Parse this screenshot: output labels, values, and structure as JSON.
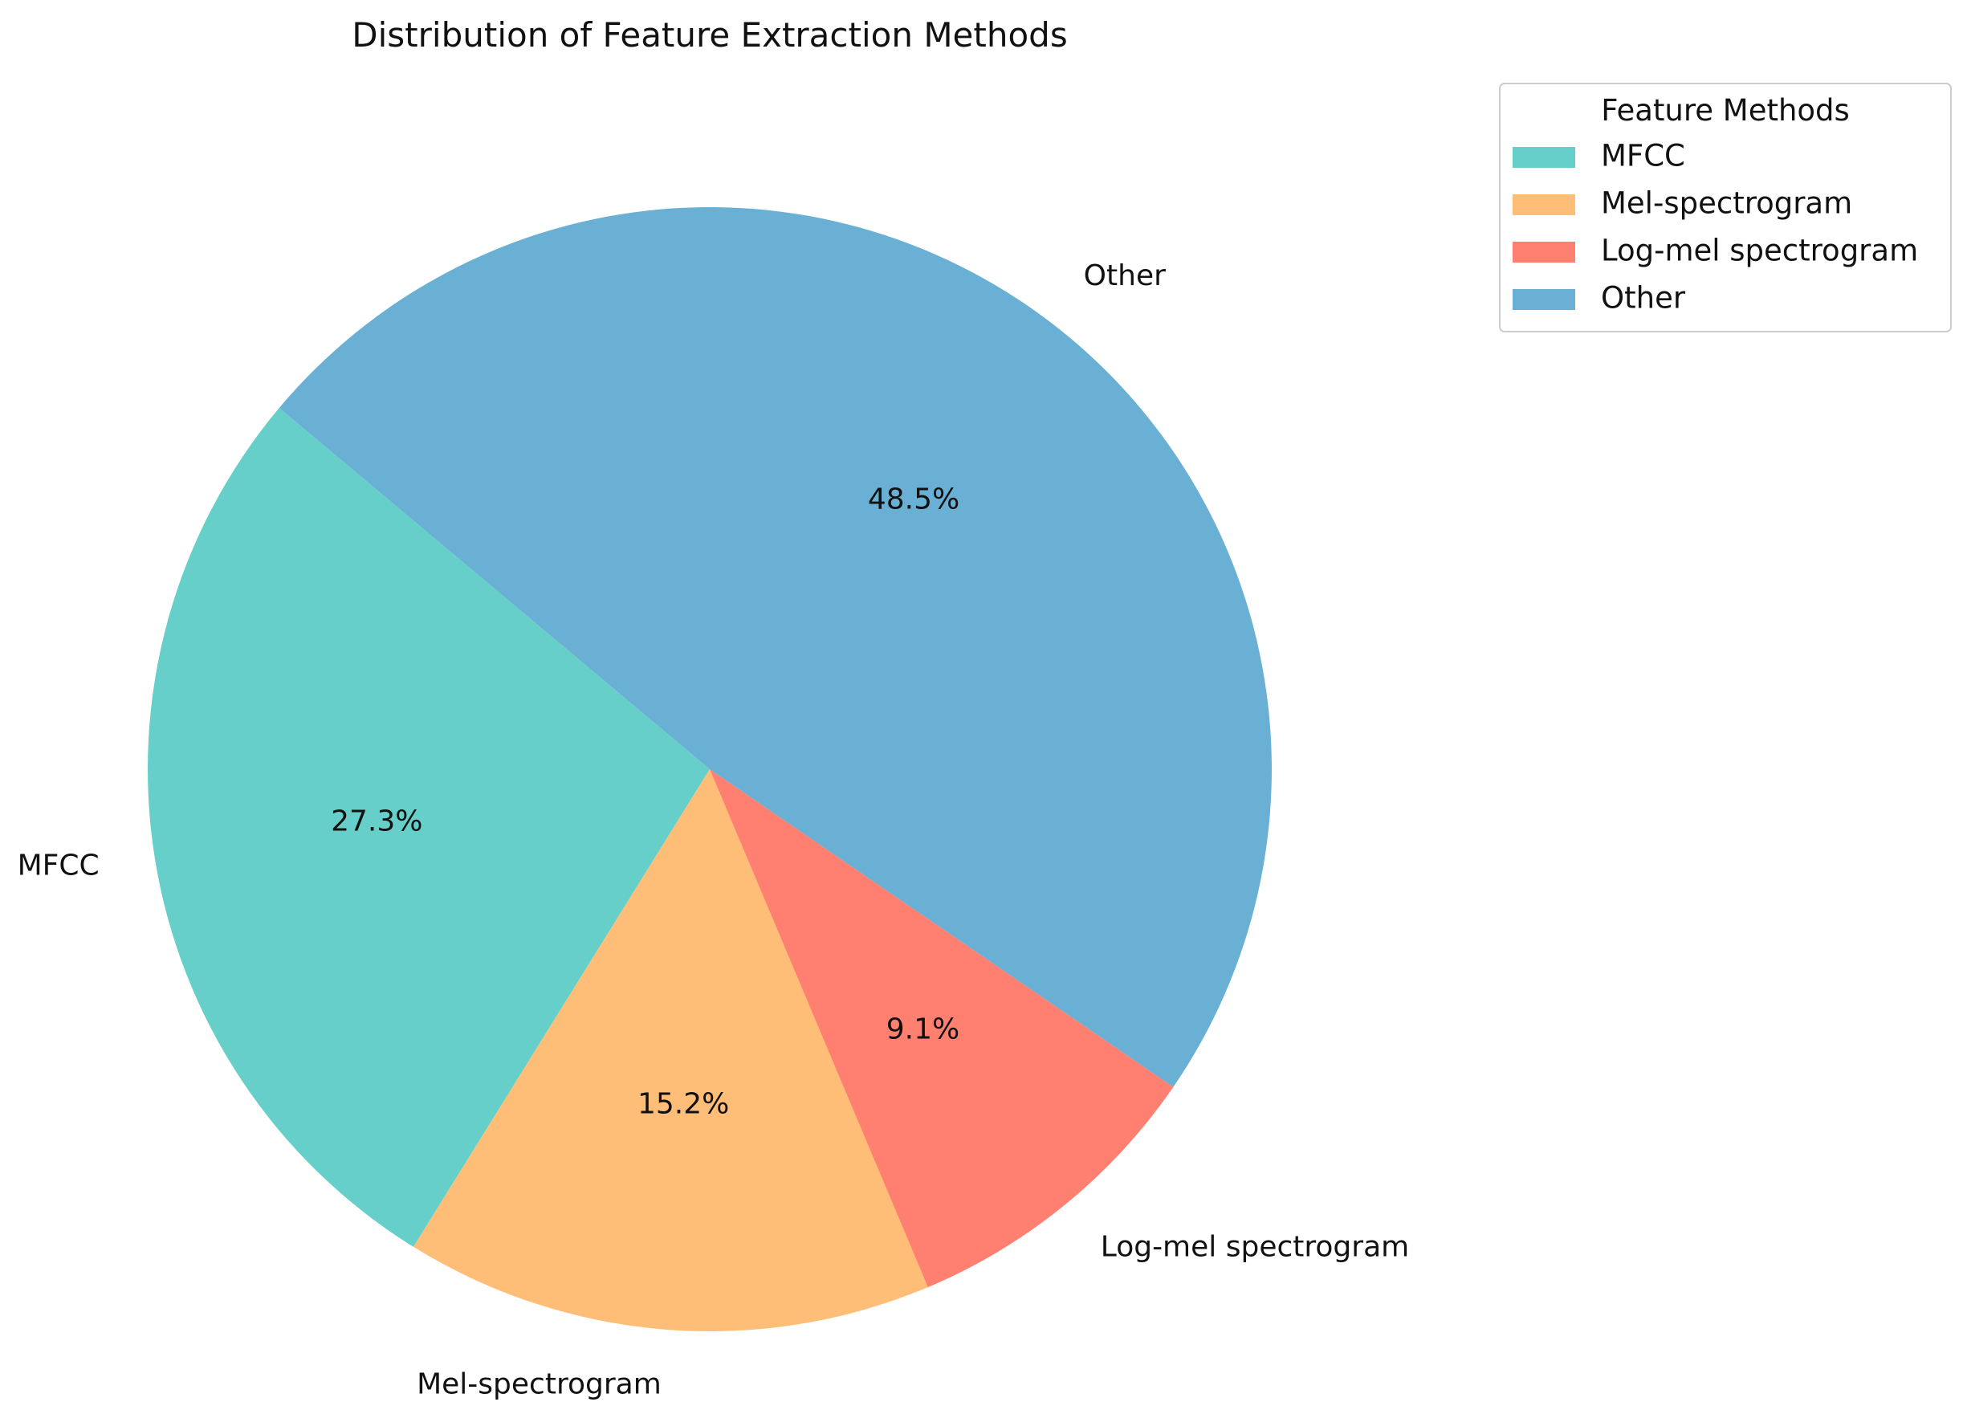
{
  "chart_data": {
    "type": "pie",
    "title": "Distribution of Feature Extraction Methods",
    "categories": [
      "MFCC",
      "Mel-spectrogram",
      "Log-mel spectrogram",
      "Other"
    ],
    "values": [
      27.3,
      15.2,
      9.1,
      48.5
    ],
    "percent_labels": [
      "27.3%",
      "15.2%",
      "9.1%",
      "48.5%"
    ],
    "colors": [
      "#66cfc9",
      "#ffbe78",
      "#ff8070",
      "#6aafd4"
    ],
    "start_angle_deg": 140,
    "direction": "counterclockwise",
    "legend": {
      "title": "Feature Methods",
      "placement": "top-right",
      "entries": [
        "MFCC",
        "Mel-spectrogram",
        "Log-mel spectrogram",
        "Other"
      ]
    }
  }
}
